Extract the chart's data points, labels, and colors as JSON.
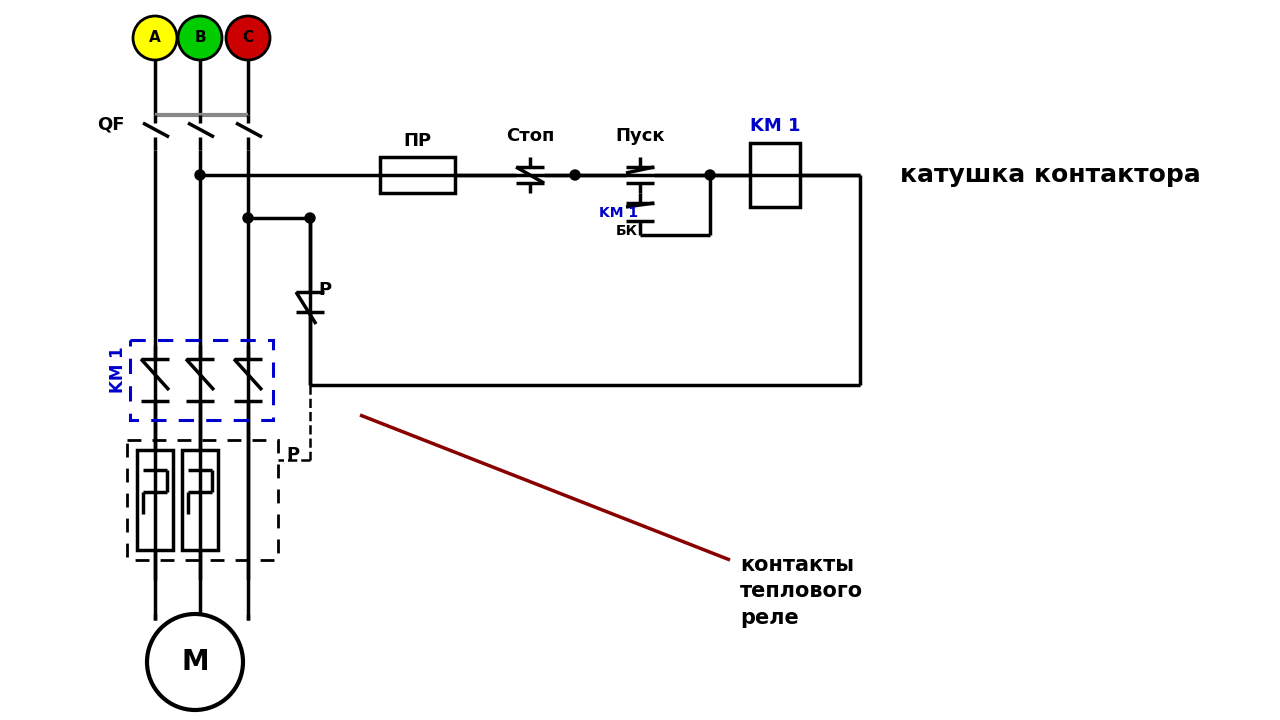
{
  "bg_color": "#ffffff",
  "black": "#000000",
  "blue": "#0000cc",
  "red": "#880000",
  "gray": "#888888",
  "phase_colors": [
    "#ffff00",
    "#00cc00",
    "#cc0000"
  ],
  "phase_labels": [
    "A",
    "B",
    "C"
  ],
  "label_katushka": "катушка контактора",
  "label_kontakty": "контакты\nтеплового\nреле",
  "label_stop": "Стоп",
  "label_pusk": "Пуск",
  "label_pr": "ПР",
  "label_km1": "KM 1",
  "label_bk": "БК",
  "label_qf": "QF",
  "label_p": "P",
  "label_M": "M"
}
